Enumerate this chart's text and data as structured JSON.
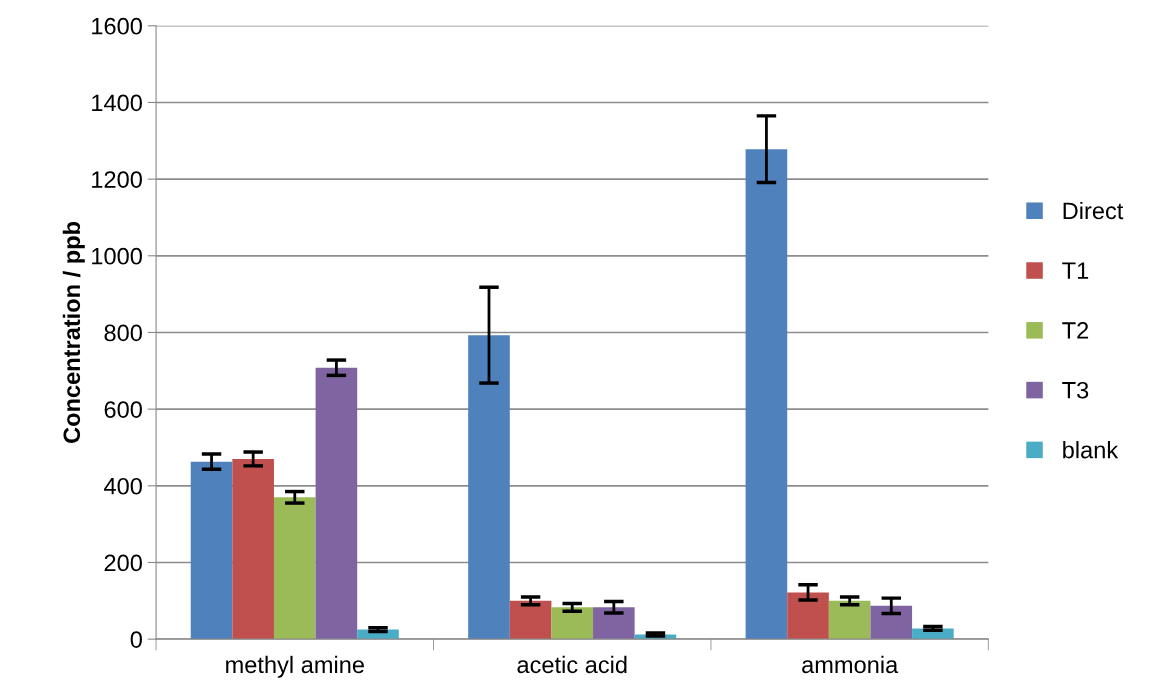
{
  "chart_data": {
    "type": "bar",
    "ylabel": "Concentration / ppb",
    "categories": [
      "methyl amine",
      "acetic acid",
      "ammonia"
    ],
    "series": [
      {
        "name": "Direct",
        "color": "#4f81bd",
        "values": [
          463,
          793,
          1278
        ],
        "errors": [
          20,
          125,
          87
        ]
      },
      {
        "name": "T1",
        "color": "#c0504d",
        "values": [
          470,
          100,
          122
        ],
        "errors": [
          18,
          10,
          20
        ]
      },
      {
        "name": "T2",
        "color": "#9bbb59",
        "values": [
          370,
          83,
          100
        ],
        "errors": [
          15,
          10,
          10
        ]
      },
      {
        "name": "T3",
        "color": "#8064a2",
        "values": [
          708,
          83,
          87
        ],
        "errors": [
          20,
          15,
          20
        ]
      },
      {
        "name": "blank",
        "color": "#4bacc6",
        "values": [
          25,
          12,
          28
        ],
        "errors": [
          5,
          4,
          5
        ]
      }
    ],
    "ylim": [
      0,
      1600
    ],
    "yticks": [
      0,
      200,
      400,
      600,
      800,
      1000,
      1200,
      1400,
      1600
    ],
    "grid": "y",
    "legend": "right"
  }
}
